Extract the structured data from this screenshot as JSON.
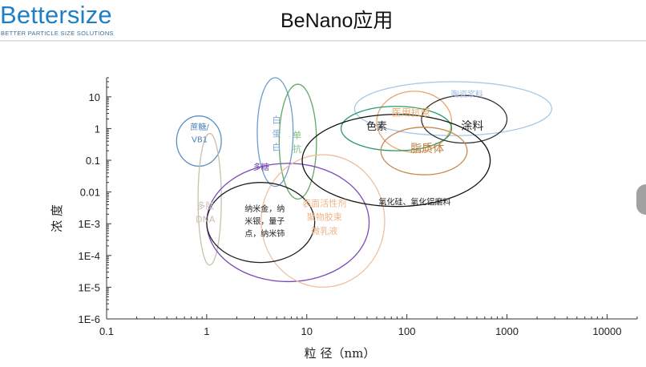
{
  "header": {
    "logo_text": "Bettersize",
    "logo_tagline": "BETTER PARTICLE SIZE SOLUTIONS",
    "title": "BeNano应用"
  },
  "colors": {
    "logo_blue": "#1f7fc4",
    "axis": "#333333"
  },
  "chart_data": {
    "type": "scatter",
    "title": "",
    "xlabel": "粒 径（nm）",
    "ylabel": "浓 度",
    "x_scale": "log",
    "y_scale": "log",
    "xlim": [
      0.1,
      20000
    ],
    "ylim": [
      1e-06,
      40
    ],
    "x_ticks": [
      {
        "value": 0.1,
        "label": "0.1"
      },
      {
        "value": 1,
        "label": "1"
      },
      {
        "value": 10,
        "label": "10"
      },
      {
        "value": 100,
        "label": "100"
      },
      {
        "value": 1000,
        "label": "1000"
      },
      {
        "value": 10000,
        "label": "10000"
      }
    ],
    "y_ticks": [
      {
        "value": 10,
        "label": "10"
      },
      {
        "value": 1,
        "label": "1"
      },
      {
        "value": 0.1,
        "label": "0.1"
      },
      {
        "value": 0.01,
        "label": "0.01"
      },
      {
        "value": 0.001,
        "label": "1E-3"
      },
      {
        "value": 0.0001,
        "label": "1E-4"
      },
      {
        "value": 1e-05,
        "label": "1E-5"
      },
      {
        "value": 1e-06,
        "label": "1E-6"
      }
    ],
    "grid": false,
    "legend": "none",
    "regions": [
      {
        "key": "sucrose",
        "x_range": [
          0.5,
          1.4
        ],
        "y_range": [
          0.065,
          2.5
        ],
        "color": "#5b8fc2",
        "lines": [
          "蔗糖/",
          "VB1"
        ],
        "label_at": [
          0.85,
          0.9
        ],
        "label_color": "#4a7fb5",
        "font_size": 10
      },
      {
        "key": "white_protein",
        "x_range": [
          3.2,
          7.3
        ],
        "y_range": [
          0.015,
          40
        ],
        "color": "#6b9bd0",
        "lines": [
          "白",
          "蛋",
          "白"
        ],
        "label_at": [
          5.0,
          1.5
        ],
        "label_color": "#7fa7d5",
        "font_size": 11
      },
      {
        "key": "monoclonal",
        "x_range": [
          5.3,
          12.5
        ],
        "y_range": [
          0.006,
          25
        ],
        "color": "#5fa85f",
        "lines": [
          "单",
          "抗"
        ],
        "label_at": [
          8.0,
          0.5
        ],
        "label_color": "#7fbf7f",
        "font_size": 11
      },
      {
        "key": "polypeptide_dna",
        "x_range": [
          0.82,
          1.4
        ],
        "y_range": [
          5e-05,
          0.7
        ],
        "color": "#c9c0ae",
        "lines": [
          "多肽",
          "DNA"
        ],
        "label_at": [
          0.97,
          0.003
        ],
        "label_color": "#c9c0ae",
        "font_size": 11
      },
      {
        "key": "nanoparticles",
        "x_range": [
          1.0,
          42
        ],
        "y_range": [
          1.5e-05,
          0.08
        ],
        "color": "#7b49b8",
        "lines": [
          "多糖"
        ],
        "label_at": [
          3.5,
          0.05
        ],
        "label_color": "#6a3aa6",
        "font_size": 10
      },
      {
        "key": "surfactant",
        "x_range": [
          3.5,
          60
        ],
        "y_range": [
          1e-05,
          0.15
        ],
        "color": "#f0c09e",
        "lines": [
          "表面活性剂",
          "聚物胶束",
          "微乳液"
        ],
        "label_at": [
          15,
          0.0035
        ],
        "label_color": "#eeb48a",
        "font_size": 11
      },
      {
        "key": "quantum_dots",
        "x_range": [
          1.0,
          12
        ],
        "y_range": [
          6e-05,
          0.02
        ],
        "color": "#222222",
        "lines": [
          "纳米金，纳",
          "米银，量子",
          "点，纳米铈"
        ],
        "label_at": [
          3.8,
          0.0024
        ],
        "label_color": "#222222",
        "font_size": 10
      },
      {
        "key": "ceramic",
        "x_range": [
          30,
          2800
        ],
        "y_range": [
          0.6,
          30
        ],
        "color": "#a9c8e6",
        "lines": [
          "陶瓷浆料"
        ],
        "label_at": [
          400,
          10
        ],
        "label_color": "#9dbde0",
        "font_size": 10
      },
      {
        "key": "medical",
        "x_range": [
          50,
          280
        ],
        "y_range": [
          0.18,
          15
        ],
        "color": "#eaa56a",
        "lines": [
          "医用抗原"
        ],
        "label_at": [
          110,
          2.5
        ],
        "label_color": "#eeaa66",
        "font_size": 12
      },
      {
        "key": "pigment",
        "x_range": [
          22,
          280
        ],
        "y_range": [
          0.2,
          5
        ],
        "color": "#2a9a6e",
        "lines": [
          "色素"
        ],
        "label_at": [
          50,
          0.9
        ],
        "label_color": "#222222",
        "font_size": 13
      },
      {
        "key": "coating",
        "x_range": [
          140,
          1000
        ],
        "y_range": [
          0.35,
          11
        ],
        "color": "#333333",
        "lines": [
          "涂料"
        ],
        "label_at": [
          450,
          0.9
        ],
        "label_color": "#222222",
        "font_size": 14
      },
      {
        "key": "liposome",
        "x_range": [
          55,
          400
        ],
        "y_range": [
          0.035,
          1.1
        ],
        "color": "#c88a4e",
        "lines": [
          "脂质体"
        ],
        "label_at": [
          160,
          0.18
        ],
        "label_color": "#c08040",
        "font_size": 14
      },
      {
        "key": "silica",
        "x_range": [
          9,
          680
        ],
        "y_range": [
          0.0035,
          2.8
        ],
        "color": "#111111",
        "lines": [
          "氧化硅、氧化铝磨料"
        ],
        "label_at": [
          120,
          0.004
        ],
        "label_color": "#222222",
        "font_size": 10
      }
    ]
  }
}
